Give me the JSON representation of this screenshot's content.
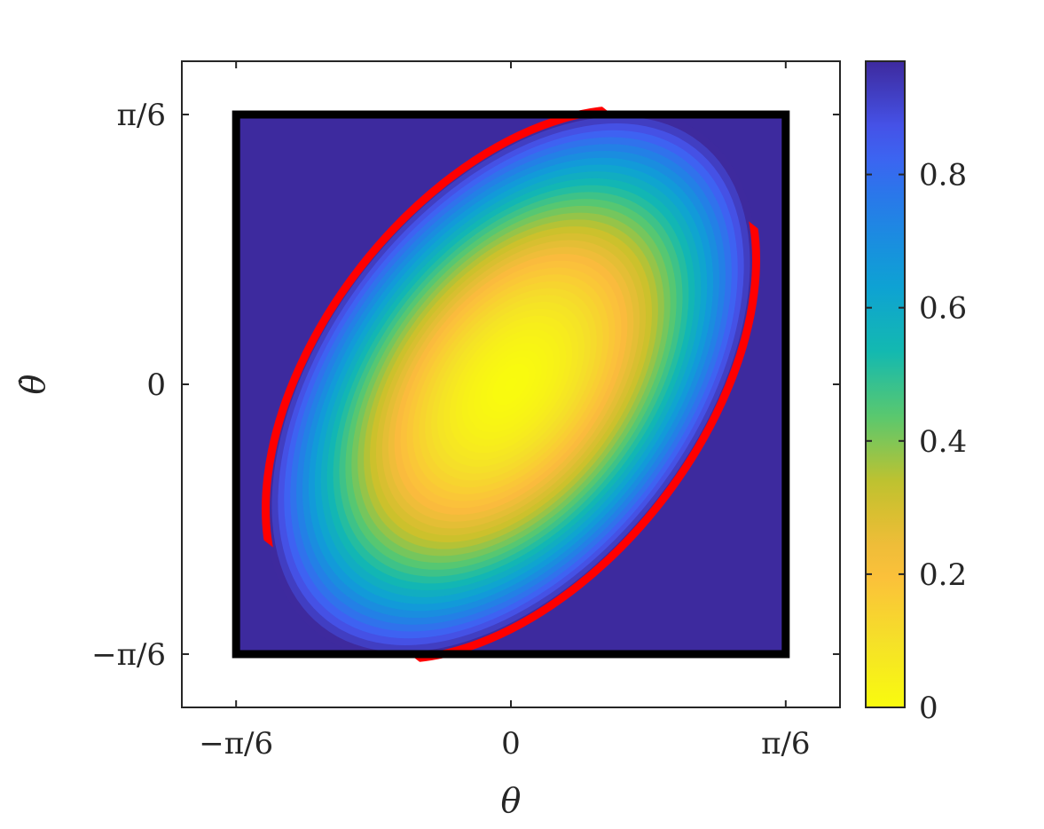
{
  "chart_data": {
    "type": "heatmap",
    "x_axis": {
      "label": "θ",
      "range_text": [
        "−π/6",
        "π/6"
      ],
      "ticks": [
        {
          "value": -0.5236,
          "label": "−π/6"
        },
        {
          "value": 0,
          "label": "0"
        },
        {
          "value": 0.5236,
          "label": "π/6"
        }
      ]
    },
    "y_axis": {
      "label": "θ̇",
      "ticks": [
        {
          "value": -0.5236,
          "label": "−π/6"
        },
        {
          "value": 0,
          "label": "0"
        },
        {
          "value": 0.5236,
          "label": "π/6"
        }
      ]
    },
    "colorbar": {
      "range": [
        0,
        0.97
      ],
      "ticks": [
        {
          "value": 0,
          "label": "0"
        },
        {
          "value": 0.2,
          "label": "0.2"
        },
        {
          "value": 0.4,
          "label": "0.4"
        },
        {
          "value": 0.6,
          "label": "0.6"
        },
        {
          "value": 0.8,
          "label": "0.8"
        }
      ],
      "colormap": "parula-reversed"
    },
    "plot_limits": {
      "x": [
        -0.627,
        0.627
      ],
      "y": [
        -0.627,
        0.627
      ]
    },
    "state_box": {
      "x": [
        -0.5236,
        0.5236
      ],
      "y": [
        -0.5236,
        0.5236
      ],
      "color": "#000000"
    },
    "level_set": {
      "shape": "ellipse",
      "center": [
        0,
        0
      ],
      "semi_major": 0.6,
      "semi_minor": 0.37,
      "rotation_deg": -52,
      "boundary_color": "#ff0000",
      "boundary_value": 1,
      "inside_value_at_center": 0,
      "outside_fill_color": "#3d2a9e"
    }
  }
}
